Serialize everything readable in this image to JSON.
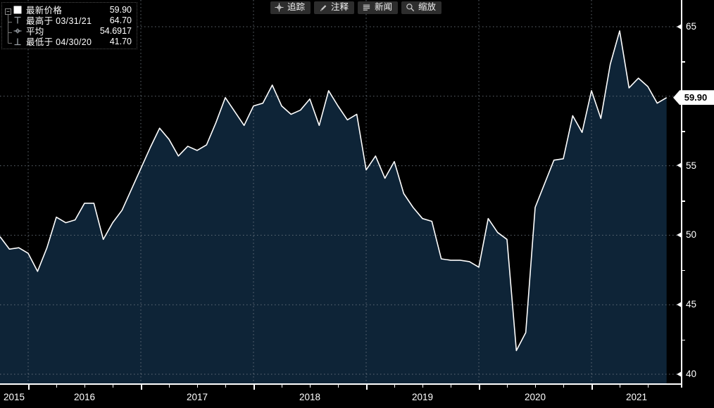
{
  "toolbar": {
    "buttons": [
      {
        "name": "track",
        "icon": "crosshair-icon",
        "label": "追踪"
      },
      {
        "name": "annotate",
        "icon": "pencil-icon",
        "label": "注释"
      },
      {
        "name": "news",
        "icon": "news-lines-icon",
        "label": "新闻"
      },
      {
        "name": "zoom",
        "icon": "magnifier-icon",
        "label": "缩放"
      }
    ]
  },
  "legend": {
    "rows": [
      {
        "marker": "latest-square-icon",
        "label": "最新价格",
        "value": "59.90"
      },
      {
        "marker": "high-marker-icon",
        "label": "最高于 03/31/21",
        "value": "64.70"
      },
      {
        "marker": "average-marker-icon",
        "label": "平均",
        "value": "54.6917"
      },
      {
        "marker": "low-marker-icon",
        "label": "最低于 04/30/20",
        "value": "41.70"
      }
    ]
  },
  "price_flag": {
    "value": "59.90"
  },
  "colors": {
    "background": "#000000",
    "area_fill": "#0e2437",
    "line": "#ffffff",
    "grid": "#707a84",
    "axis": "#ffffff",
    "flag_bg": "#ffffff",
    "flag_text": "#000000",
    "button_bg": "#2d2d2d",
    "button_text": "#f2f2f2",
    "legend_marker": "#9aa0a6",
    "legend_border": "#4d4d4d"
  },
  "chart_data": {
    "type": "area",
    "series_name": "最新价格",
    "x": [
      "2015-09",
      "2015-10",
      "2015-11",
      "2015-12",
      "2016-01",
      "2016-02",
      "2016-03",
      "2016-04",
      "2016-05",
      "2016-06",
      "2016-07",
      "2016-08",
      "2016-09",
      "2016-10",
      "2016-11",
      "2016-12",
      "2017-01",
      "2017-02",
      "2017-03",
      "2017-04",
      "2017-05",
      "2017-06",
      "2017-07",
      "2017-08",
      "2017-09",
      "2017-10",
      "2017-11",
      "2017-12",
      "2018-01",
      "2018-02",
      "2018-03",
      "2018-04",
      "2018-05",
      "2018-06",
      "2018-07",
      "2018-08",
      "2018-09",
      "2018-10",
      "2018-11",
      "2018-12",
      "2019-01",
      "2019-02",
      "2019-03",
      "2019-04",
      "2019-05",
      "2019-06",
      "2019-07",
      "2019-08",
      "2019-09",
      "2019-10",
      "2019-11",
      "2019-12",
      "2020-01",
      "2020-02",
      "2020-03",
      "2020-04",
      "2020-05",
      "2020-06",
      "2020-07",
      "2020-08",
      "2020-09",
      "2020-10",
      "2020-11",
      "2020-12",
      "2021-01",
      "2021-02",
      "2021-03",
      "2021-04",
      "2021-05",
      "2021-06",
      "2021-07",
      "2021-08"
    ],
    "values": [
      49.9,
      49.0,
      49.1,
      48.7,
      47.4,
      49.1,
      51.3,
      50.9,
      51.1,
      52.3,
      52.3,
      49.7,
      50.9,
      51.8,
      53.3,
      54.8,
      56.3,
      57.7,
      56.9,
      55.7,
      56.4,
      56.1,
      56.5,
      58.1,
      59.9,
      58.9,
      57.9,
      59.3,
      59.5,
      60.8,
      59.3,
      58.7,
      59.0,
      59.8,
      57.9,
      60.4,
      59.3,
      58.3,
      58.7,
      54.7,
      55.7,
      54.1,
      55.3,
      53.0,
      52.0,
      51.2,
      51.0,
      48.3,
      48.2,
      48.2,
      48.1,
      47.7,
      51.2,
      50.2,
      49.7,
      41.7,
      43.0,
      52.0,
      53.7,
      55.4,
      55.5,
      58.6,
      57.4,
      60.4,
      58.4,
      62.3,
      64.7,
      60.6,
      61.3,
      60.7,
      59.5,
      59.9
    ],
    "y_axis": {
      "tick_labels": [
        65,
        55,
        50,
        45,
        40
      ],
      "gridline_values": [
        65,
        60,
        55,
        50,
        45,
        40
      ],
      "minor_tick_values": [
        62.5,
        57.5,
        52.5,
        47.5,
        42.5
      ],
      "range_shown": [
        40,
        65
      ]
    },
    "x_axis": {
      "year_labels": [
        "2015",
        "2016",
        "2017",
        "2018",
        "2019",
        "2020",
        "2021"
      ]
    },
    "stats": {
      "latest": 59.9,
      "high_date": "03/31/21",
      "high": 64.7,
      "average": 54.6917,
      "low_date": "04/30/20",
      "low": 41.7
    },
    "grid": "dotted",
    "legend_position": "top-left"
  }
}
